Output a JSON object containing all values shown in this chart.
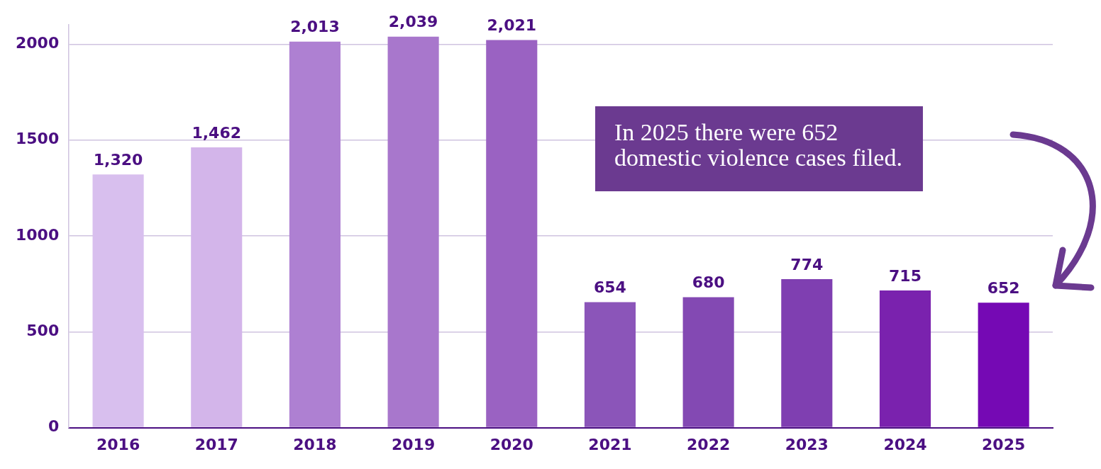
{
  "chart_data": {
    "type": "bar",
    "categories": [
      "2016",
      "2017",
      "2018",
      "2019",
      "2020",
      "2021",
      "2022",
      "2023",
      "2024",
      "2025"
    ],
    "values": [
      1320,
      1462,
      2013,
      2039,
      2021,
      654,
      680,
      774,
      715,
      652
    ],
    "value_labels": [
      "1,320",
      "1,462",
      "2,013",
      "2,039",
      "2,021",
      "654",
      "680",
      "774",
      "715",
      "652"
    ],
    "colors": [
      "#d8bfee",
      "#d3b5ea",
      "#ae80d2",
      "#a877cc",
      "#9a62c2",
      "#8b55b9",
      "#8349b3",
      "#7f3fb1",
      "#7a22ae",
      "#7509b4"
    ],
    "ylim": [
      0,
      2100
    ],
    "yticks": [
      0,
      500,
      1000,
      1500,
      2000
    ],
    "grid": "y",
    "legend": false,
    "annotations": [
      "In 2025 there were 652\ndomestic violence cases filed."
    ]
  }
}
